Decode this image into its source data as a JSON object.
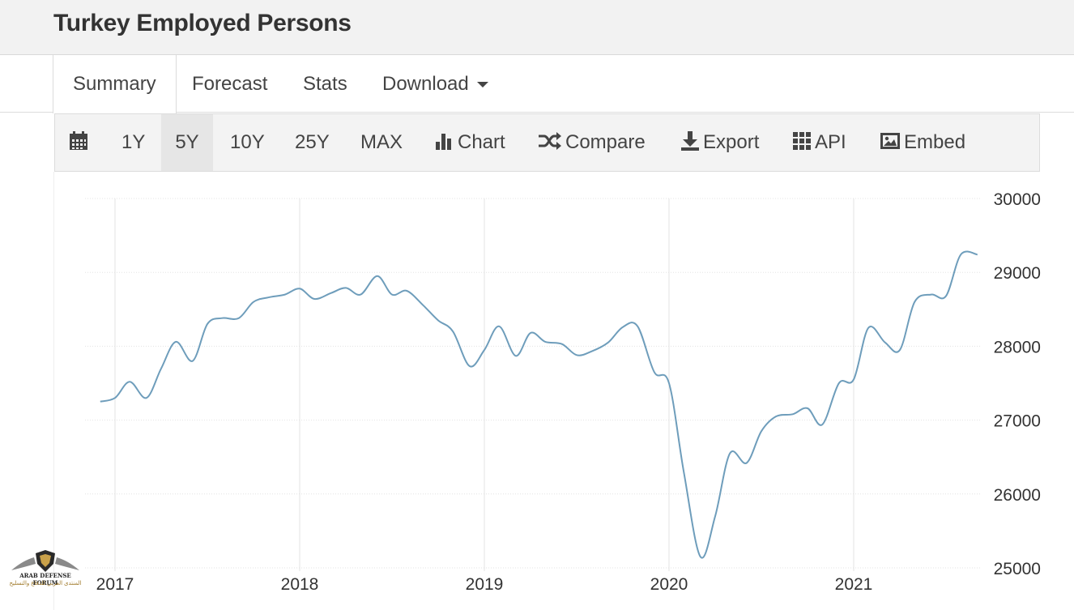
{
  "header": {
    "title": "Turkey Employed Persons"
  },
  "tabs": [
    {
      "label": "Summary",
      "active": true
    },
    {
      "label": "Forecast"
    },
    {
      "label": "Stats"
    },
    {
      "label": "Download"
    }
  ],
  "toolbar": {
    "calendar_icon": "calendar-icon",
    "ranges": [
      "1Y",
      "5Y",
      "10Y",
      "25Y",
      "MAX"
    ],
    "active_range": "5Y",
    "chart_label": "Chart",
    "compare_label": "Compare",
    "export_label": "Export",
    "api_label": "API",
    "embed_label": "Embed"
  },
  "colors": {
    "line": "#6e9dbb",
    "grid": "#e3e3e3",
    "text": "#333333"
  },
  "watermark": {
    "text": "ARAB DEFENSE FORUM",
    "subtext": "المنتدى العربي للدفاع والتسليح"
  },
  "chart_data": {
    "type": "line",
    "title": "",
    "xlabel": "",
    "ylabel": "",
    "x_tick_labels": [
      "2017",
      "2018",
      "2019",
      "2020",
      "2021"
    ],
    "y_tick_labels": [
      "25000",
      "26000",
      "27000",
      "28000",
      "29000",
      "30000"
    ],
    "ylim": [
      25000,
      30000
    ],
    "grid": true,
    "y_axis_position": "right",
    "series": [
      {
        "x": [
          2016.92,
          2017.0,
          2017.08,
          2017.17,
          2017.25,
          2017.33,
          2017.42,
          2017.5,
          2017.58,
          2017.67,
          2017.75,
          2017.83,
          2017.92,
          2018.0,
          2018.08,
          2018.17,
          2018.25,
          2018.33,
          2018.42,
          2018.5,
          2018.58,
          2018.67,
          2018.75,
          2018.83,
          2018.92,
          2019.0,
          2019.08,
          2019.17,
          2019.25,
          2019.33,
          2019.42,
          2019.5,
          2019.58,
          2019.67,
          2019.75,
          2019.83,
          2019.92,
          2020.0,
          2020.08,
          2020.17,
          2020.25,
          2020.33,
          2020.42,
          2020.5,
          2020.58,
          2020.67,
          2020.75,
          2020.83,
          2020.92,
          2021.0,
          2021.08,
          2021.17,
          2021.25,
          2021.33,
          2021.42,
          2021.5,
          2021.58,
          2021.67
        ],
        "values": [
          27250,
          27300,
          27520,
          27300,
          27700,
          28060,
          27800,
          28300,
          28380,
          28380,
          28600,
          28660,
          28700,
          28780,
          28640,
          28720,
          28790,
          28700,
          28950,
          28700,
          28750,
          28550,
          28350,
          28200,
          27730,
          27950,
          28270,
          27870,
          28180,
          28060,
          28030,
          27880,
          27930,
          28050,
          28260,
          28270,
          27650,
          27500,
          26300,
          25150,
          25700,
          26550,
          26420,
          26850,
          27050,
          27080,
          27160,
          26940,
          27500,
          27550,
          28250,
          28050,
          27950,
          28600,
          28700,
          28680,
          29240,
          29240
        ]
      }
    ]
  }
}
